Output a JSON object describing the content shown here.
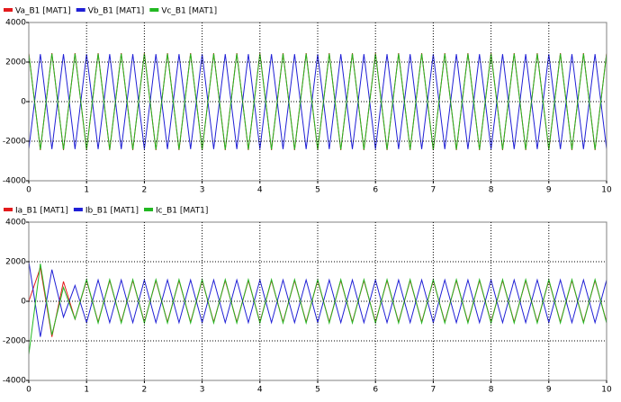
{
  "chart_data": [
    {
      "type": "line",
      "x": [
        0,
        0.2,
        0.4,
        0.6,
        0.8,
        1,
        1.2,
        1.4,
        1.6,
        1.8,
        2,
        2.2,
        2.4,
        2.6,
        2.8,
        3,
        3.2,
        3.4,
        3.6,
        3.8,
        4,
        4.2,
        4.4,
        4.6,
        4.8,
        5,
        5.2,
        5.4,
        5.6,
        5.8,
        6,
        6.2,
        6.4,
        6.6,
        6.8,
        7,
        7.2,
        7.4,
        7.6,
        7.8,
        8,
        8.2,
        8.4,
        8.6,
        8.8,
        9,
        9.2,
        9.4,
        9.6,
        9.8,
        10
      ],
      "series": [
        {
          "name": "Va_B1 [MAT1]",
          "color": "#e31a1c",
          "values": [
            2450,
            -2450,
            2450,
            -2450,
            2450,
            -2450,
            2450,
            -2450,
            2450,
            -2450,
            2450,
            -2450,
            2450,
            -2450,
            2450,
            -2450,
            2450,
            -2450,
            2450,
            -2450,
            2450,
            -2450,
            2450,
            -2450,
            2450,
            -2450,
            2450,
            -2450,
            2450,
            -2450,
            2450,
            -2450,
            2450,
            -2450,
            2450,
            -2450,
            2450,
            -2450,
            2450,
            -2450,
            2450,
            -2450,
            2450,
            -2450,
            2450,
            -2450,
            2450,
            -2450,
            2450,
            -2450,
            2450
          ]
        },
        {
          "name": "Vb_B1 [MAT1]",
          "color": "#1f1fd6",
          "values": [
            -2400,
            2400,
            -2400,
            2400,
            -2400,
            2400,
            -2400,
            2400,
            -2400,
            2400,
            -2400,
            2400,
            -2400,
            2400,
            -2400,
            2400,
            -2400,
            2400,
            -2400,
            2400,
            -2400,
            2400,
            -2400,
            2400,
            -2400,
            2400,
            -2400,
            2400,
            -2400,
            2400,
            -2400,
            2400,
            -2400,
            2400,
            -2400,
            2400,
            -2400,
            2400,
            -2400,
            2400,
            -2400,
            2400,
            -2400,
            2400,
            -2400,
            2400,
            -2400,
            2400,
            -2400,
            2400,
            -2400
          ]
        },
        {
          "name": "Vc_B1 [MAT1]",
          "color": "#22b822",
          "values": [
            2430,
            -2430,
            2430,
            -2430,
            2430,
            -2430,
            2430,
            -2430,
            2430,
            -2430,
            2430,
            -2430,
            2430,
            -2430,
            2430,
            -2430,
            2430,
            -2430,
            2430,
            -2430,
            2430,
            -2430,
            2430,
            -2430,
            2430,
            -2430,
            2430,
            -2430,
            2430,
            -2430,
            2430,
            -2430,
            2430,
            -2430,
            2430,
            -2430,
            2430,
            -2430,
            2430,
            -2430,
            2430,
            -2430,
            2430,
            -2430,
            2430,
            -2430,
            2430,
            -2430,
            2430,
            -2430,
            2430
          ]
        }
      ],
      "xlim": [
        0,
        10
      ],
      "xticks": [
        0,
        1,
        2,
        3,
        4,
        5,
        6,
        7,
        8,
        9,
        10
      ],
      "ylim": [
        -4000,
        4000
      ],
      "yticks": [
        -4000,
        -2000,
        0,
        2000,
        4000
      ],
      "grid": true
    },
    {
      "type": "line",
      "x": [
        0,
        0.2,
        0.4,
        0.6,
        0.8,
        1,
        1.2,
        1.4,
        1.6,
        1.8,
        2,
        2.2,
        2.4,
        2.6,
        2.8,
        3,
        3.2,
        3.4,
        3.6,
        3.8,
        4,
        4.2,
        4.4,
        4.6,
        4.8,
        5,
        5.2,
        5.4,
        5.6,
        5.8,
        6,
        6.2,
        6.4,
        6.6,
        6.8,
        7,
        7.2,
        7.4,
        7.6,
        7.8,
        8,
        8.2,
        8.4,
        8.6,
        8.8,
        9,
        9.2,
        9.4,
        9.6,
        9.8,
        10
      ],
      "series": [
        {
          "name": "Ia_B1 [MAT1]",
          "color": "#e31a1c",
          "values": [
            0,
            1700,
            -1800,
            1000,
            -900,
            1050,
            -1050,
            1050,
            -1050,
            1050,
            -1050,
            1050,
            -1050,
            1050,
            -1050,
            1050,
            -1050,
            1050,
            -1050,
            1050,
            -1050,
            1050,
            -1050,
            1050,
            -1050,
            1050,
            -1050,
            1050,
            -1050,
            1050,
            -1050,
            1050,
            -1050,
            1050,
            -1050,
            1050,
            -1050,
            1050,
            -1050,
            1050,
            -1050,
            1050,
            -1050,
            1050,
            -1050,
            1050,
            -1050,
            1050,
            -1050,
            1050,
            -1050
          ]
        },
        {
          "name": "Ib_B1 [MAT1]",
          "color": "#1f1fd6",
          "values": [
            2000,
            -1800,
            1600,
            -800,
            800,
            -1080,
            1080,
            -1080,
            1080,
            -1080,
            1080,
            -1080,
            1080,
            -1080,
            1080,
            -1080,
            1080,
            -1080,
            1080,
            -1080,
            1080,
            -1080,
            1080,
            -1080,
            1080,
            -1080,
            1080,
            -1080,
            1080,
            -1080,
            1080,
            -1080,
            1080,
            -1080,
            1080,
            -1080,
            1080,
            -1080,
            1080,
            -1080,
            1080,
            -1080,
            1080,
            -1080,
            1080,
            -1080,
            1080,
            -1080,
            1080,
            -1080,
            1080
          ]
        },
        {
          "name": "Ic_B1 [MAT1]",
          "color": "#22b822",
          "values": [
            -2700,
            1900,
            -1700,
            700,
            -900,
            1100,
            -1100,
            1100,
            -1100,
            1100,
            -1100,
            1100,
            -1100,
            1100,
            -1100,
            1100,
            -1100,
            1100,
            -1100,
            1100,
            -1100,
            1100,
            -1100,
            1100,
            -1100,
            1100,
            -1100,
            1100,
            -1100,
            1100,
            -1100,
            1100,
            -1100,
            1100,
            -1100,
            1100,
            -1100,
            1100,
            -1100,
            1100,
            -1100,
            1100,
            -1100,
            1100,
            -1100,
            1100,
            -1100,
            1100,
            -1100,
            1100,
            -1100
          ]
        }
      ],
      "xlim": [
        0,
        10
      ],
      "xticks": [
        0,
        1,
        2,
        3,
        4,
        5,
        6,
        7,
        8,
        9,
        10
      ],
      "ylim": [
        -4000,
        4000
      ],
      "yticks": [
        -4000,
        -2000,
        0,
        2000,
        4000
      ],
      "grid": true
    }
  ]
}
